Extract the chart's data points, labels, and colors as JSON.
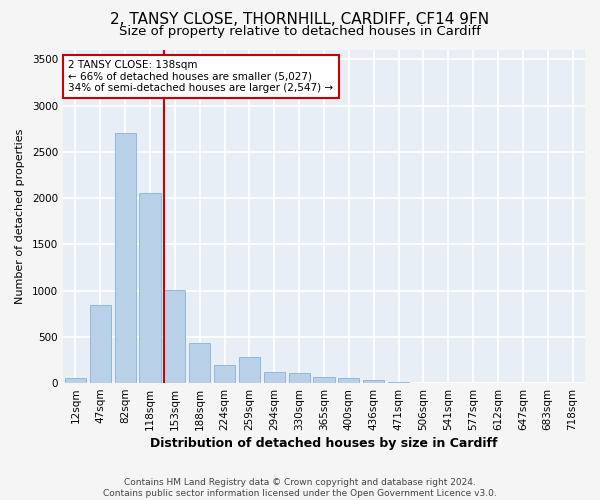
{
  "title": "2, TANSY CLOSE, THORNHILL, CARDIFF, CF14 9FN",
  "subtitle": "Size of property relative to detached houses in Cardiff",
  "xlabel": "Distribution of detached houses by size in Cardiff",
  "ylabel": "Number of detached properties",
  "footer_line1": "Contains HM Land Registry data © Crown copyright and database right 2024.",
  "footer_line2": "Contains public sector information licensed under the Open Government Licence v3.0.",
  "categories": [
    "12sqm",
    "47sqm",
    "82sqm",
    "118sqm",
    "153sqm",
    "188sqm",
    "224sqm",
    "259sqm",
    "294sqm",
    "330sqm",
    "365sqm",
    "400sqm",
    "436sqm",
    "471sqm",
    "506sqm",
    "541sqm",
    "577sqm",
    "612sqm",
    "647sqm",
    "683sqm",
    "718sqm"
  ],
  "values": [
    55,
    840,
    2700,
    2050,
    1010,
    430,
    200,
    280,
    115,
    110,
    65,
    55,
    30,
    10,
    0,
    0,
    0,
    0,
    0,
    0,
    0
  ],
  "bar_color": "#b8d0e8",
  "bar_edge_color": "#7aaad0",
  "background_color": "#e8eef5",
  "grid_color": "#ffffff",
  "vline_color": "#cc0000",
  "annotation_line1": "2 TANSY CLOSE: 138sqm",
  "annotation_line2": "← 66% of detached houses are smaller (5,027)",
  "annotation_line3": "34% of semi-detached houses are larger (2,547) →",
  "annotation_box_color": "#ffffff",
  "annotation_box_edge": "#cc0000",
  "ylim": [
    0,
    3600
  ],
  "yticks": [
    0,
    500,
    1000,
    1500,
    2000,
    2500,
    3000,
    3500
  ],
  "title_fontsize": 11,
  "subtitle_fontsize": 9.5,
  "xlabel_fontsize": 9,
  "ylabel_fontsize": 8,
  "tick_fontsize": 7.5,
  "annotation_fontsize": 7.5,
  "footer_fontsize": 6.5
}
